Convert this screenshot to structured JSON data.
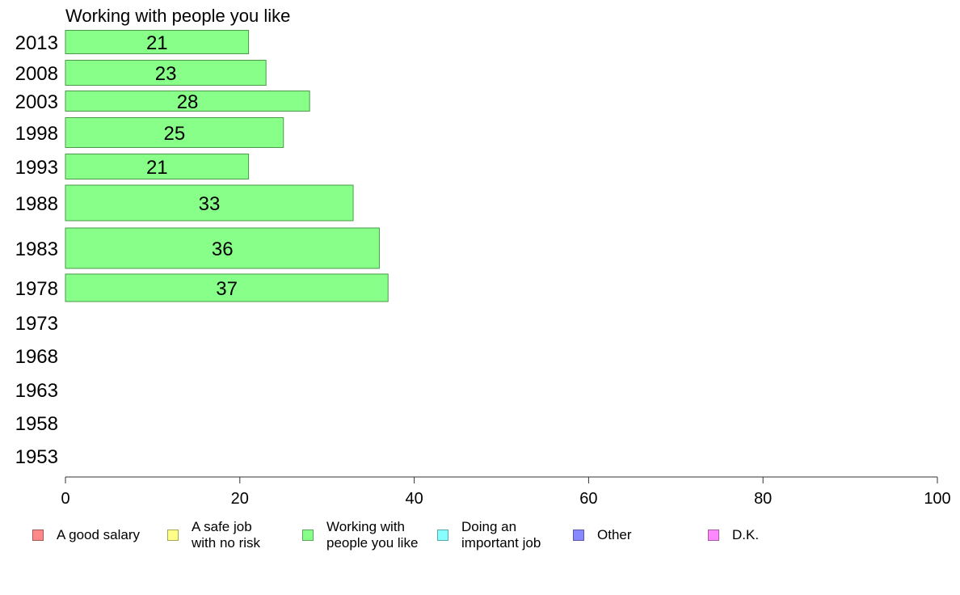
{
  "chart_data": {
    "type": "bar",
    "orientation": "horizontal",
    "title": "Working with people you like",
    "categories": [
      "2013",
      "2008",
      "2003",
      "1998",
      "1993",
      "1988",
      "1983",
      "1978",
      "1973",
      "1968",
      "1963",
      "1958",
      "1953"
    ],
    "values": [
      21,
      23,
      28,
      25,
      21,
      33,
      36,
      37,
      null,
      null,
      null,
      null,
      null
    ],
    "data_labels": [
      "21",
      "23",
      "28",
      "25",
      "21",
      "33",
      "36",
      "37",
      "",
      "",
      "",
      "",
      ""
    ],
    "xlim": [
      0,
      100
    ],
    "xticks": [
      0,
      20,
      40,
      60,
      80,
      100
    ],
    "xtick_labels": [
      "0",
      "20",
      "40",
      "60",
      "80",
      "100"
    ],
    "bar_color": "#88ff88",
    "grid": false,
    "legend_position": "bottom",
    "legend": [
      {
        "label": "A good salary",
        "color": "#ff8888"
      },
      {
        "label": "A safe job\nwith no risk",
        "color": "#ffff88"
      },
      {
        "label": "Working with\npeople you like",
        "color": "#88ff88"
      },
      {
        "label": "Doing an\nimportant job",
        "color": "#88ffff"
      },
      {
        "label": "Other",
        "color": "#8888ff"
      },
      {
        "label": "D.K.",
        "color": "#ff88ff"
      }
    ]
  }
}
